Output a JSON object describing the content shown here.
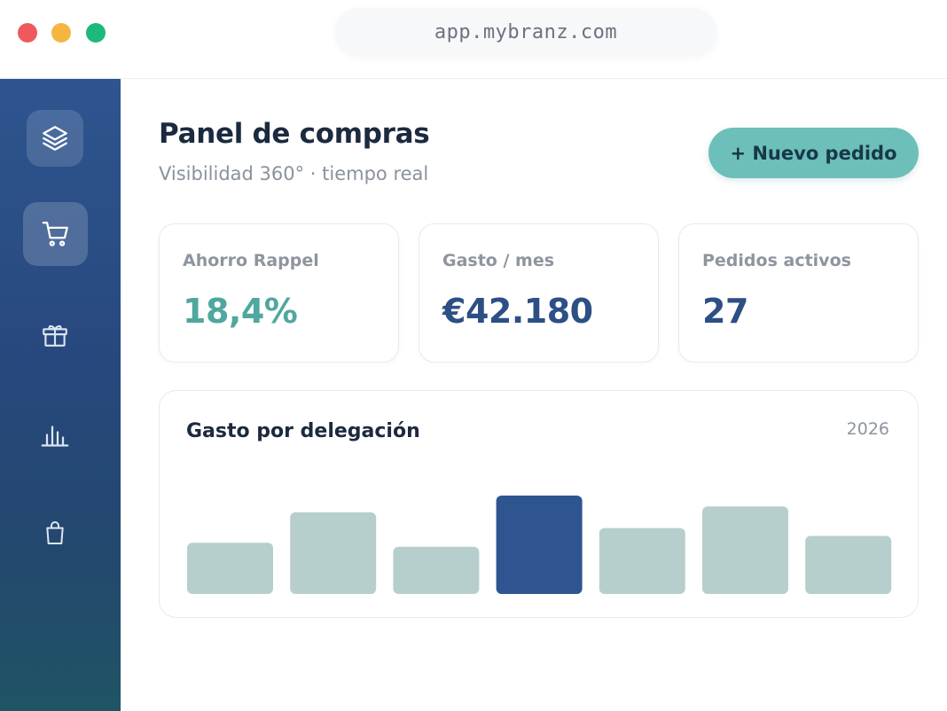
{
  "window": {
    "url": "app.mybranz.com",
    "controls": {
      "close_color": "#f0595c",
      "minimize_color": "#f4b63f",
      "maximize_color": "#1db97c"
    }
  },
  "sidebar": {
    "items": [
      {
        "icon": "layers-icon",
        "boxed": true,
        "active": false
      },
      {
        "icon": "shopping-cart-icon",
        "boxed": true,
        "active": true
      },
      {
        "icon": "gift-icon",
        "boxed": false,
        "active": false
      },
      {
        "icon": "bar-chart-icon",
        "boxed": false,
        "active": false
      },
      {
        "icon": "shopping-bag-icon",
        "boxed": false,
        "active": false
      }
    ]
  },
  "header": {
    "title": "Panel de compras",
    "subtitle": "Visibilidad 360° · tiempo real",
    "new_order_label": "+ Nuevo pedido"
  },
  "kpis": [
    {
      "label": "Ahorro Rappel",
      "value": "18,4%",
      "color": "#4fa79f"
    },
    {
      "label": "Gasto / mes",
      "value": "€42.180",
      "color": "#2c4f85"
    },
    {
      "label": "Pedidos activos",
      "value": "27",
      "color": "#2c4f85"
    }
  ],
  "chart": {
    "title": "Gasto por delegación",
    "year": "2026"
  },
  "chart_data": {
    "type": "bar",
    "title": "Gasto por delegación",
    "categories": [
      "",
      "",
      "",
      "",
      "",
      "",
      ""
    ],
    "values": [
      52,
      83,
      48,
      100,
      67,
      89,
      59
    ],
    "highlight_index": 3,
    "bar_color": "#b7cfcc",
    "highlight_color": "#2e5590",
    "xlabel": "",
    "ylabel": "",
    "ylim": [
      0,
      100
    ],
    "grid": false,
    "legend": "none"
  },
  "colors": {
    "accent": "#6dbfba",
    "brand": "#2e5590",
    "text_dark": "#1c2a3f",
    "text_muted": "#8e959e"
  }
}
